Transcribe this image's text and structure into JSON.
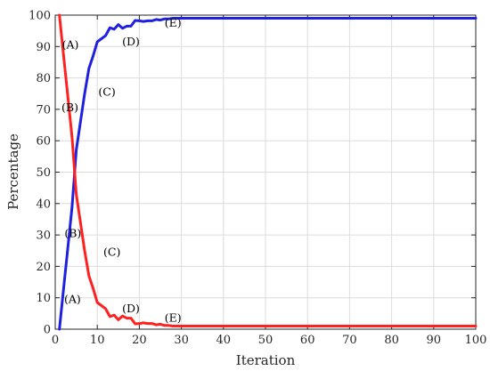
{
  "chart_data": {
    "type": "line",
    "title": "",
    "xlabel": "Iteration",
    "ylabel": "Percentage",
    "xlim": [
      0,
      100
    ],
    "ylim": [
      0,
      100
    ],
    "grid": true,
    "xticks": [
      0,
      10,
      20,
      30,
      40,
      50,
      60,
      70,
      80,
      90,
      100
    ],
    "yticks": [
      0,
      10,
      20,
      30,
      40,
      50,
      60,
      70,
      80,
      90,
      100
    ],
    "series": [
      {
        "color": "#2020e0",
        "x": [
          1,
          2,
          3,
          4,
          5,
          6,
          7,
          8,
          9,
          10,
          11,
          12,
          13,
          14,
          15,
          16,
          17,
          18,
          19,
          20,
          21,
          22,
          23,
          24,
          25,
          26,
          27,
          28,
          30,
          35,
          40,
          50,
          60,
          70,
          80,
          90,
          100
        ],
        "y": [
          0,
          13,
          26,
          39,
          57,
          66,
          75,
          83,
          87,
          91.5,
          92.5,
          93.5,
          96,
          95.5,
          97,
          95.8,
          96.5,
          96.5,
          98.3,
          98.2,
          98,
          98.2,
          98.2,
          98.6,
          98.4,
          98.8,
          98.8,
          99,
          99,
          99,
          99,
          99,
          99,
          99,
          99,
          99,
          99
        ]
      },
      {
        "color": "#ff2020",
        "x": [
          1,
          2,
          3,
          4,
          5,
          6,
          7,
          8,
          9,
          10,
          11,
          12,
          13,
          14,
          15,
          16,
          17,
          18,
          19,
          20,
          21,
          22,
          23,
          24,
          25,
          26,
          27,
          28,
          30,
          35,
          40,
          50,
          60,
          70,
          80,
          90,
          100
        ],
        "y": [
          100,
          87,
          74,
          61,
          43,
          34,
          25,
          17,
          13,
          8.5,
          7.5,
          6.5,
          4,
          4.5,
          3,
          4.2,
          3.5,
          3.5,
          1.7,
          1.8,
          2,
          1.8,
          1.8,
          1.4,
          1.6,
          1.2,
          1.2,
          1,
          1,
          1,
          1,
          1,
          1,
          1,
          1,
          1,
          1
        ]
      }
    ],
    "annotations": [
      {
        "text": "(A)",
        "x": 3.6,
        "y": 90.5
      },
      {
        "text": "(B)",
        "x": 3.5,
        "y": 70.5
      },
      {
        "text": "(C)",
        "x": 12.3,
        "y": 75.5
      },
      {
        "text": "(D)",
        "x": 18,
        "y": 91.5
      },
      {
        "text": "(E)",
        "x": 28,
        "y": 97.5
      },
      {
        "text": "(B)",
        "x": 4.2,
        "y": 30.5
      },
      {
        "text": "(C)",
        "x": 13.5,
        "y": 24.5
      },
      {
        "text": "(A)",
        "x": 4.1,
        "y": 9.5
      },
      {
        "text": "(D)",
        "x": 18,
        "y": 6.5
      },
      {
        "text": "(E)",
        "x": 28,
        "y": 3.5
      }
    ]
  }
}
